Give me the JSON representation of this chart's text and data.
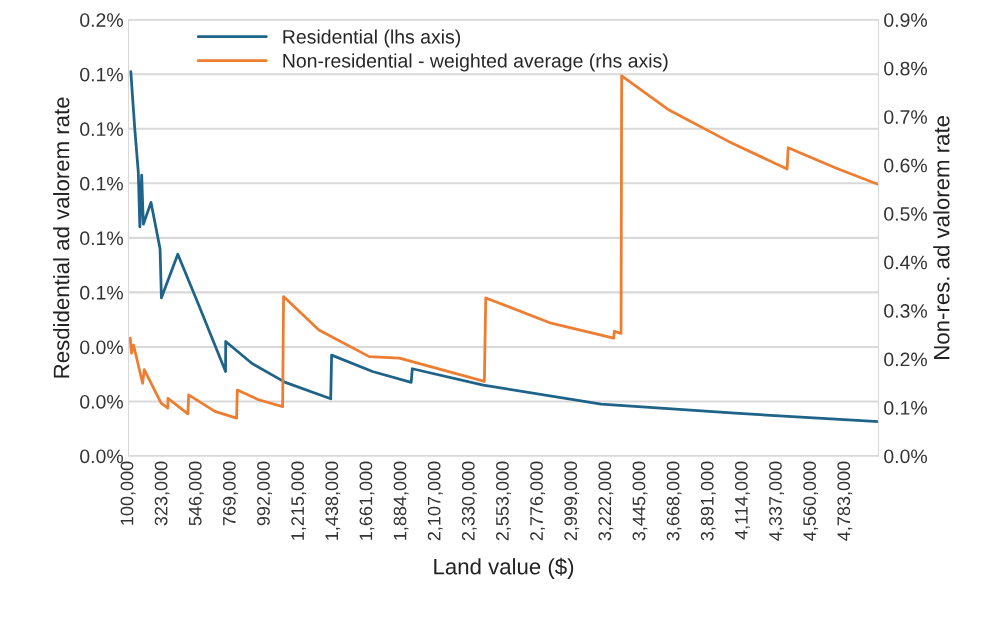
{
  "chart_data": {
    "type": "line",
    "xlabel": "Land value ($)",
    "ylabel": "Resdidential ad valorem rate",
    "y2label": "Non-res. ad valorem rate",
    "xlim": [
      100000,
      5000000
    ],
    "xticks": [
      {
        "value": 100000,
        "label": "100,000"
      },
      {
        "value": 323000,
        "label": "323,000"
      },
      {
        "value": 546000,
        "label": "546,000"
      },
      {
        "value": 769000,
        "label": "769,000"
      },
      {
        "value": 992000,
        "label": "992,000"
      },
      {
        "value": 1215000,
        "label": "1,215,000"
      },
      {
        "value": 1438000,
        "label": "1,438,000"
      },
      {
        "value": 1661000,
        "label": "1,661,000"
      },
      {
        "value": 1884000,
        "label": "1,884,000"
      },
      {
        "value": 2107000,
        "label": "2,107,000"
      },
      {
        "value": 2330000,
        "label": "2,330,000"
      },
      {
        "value": 2553000,
        "label": "2,553,000"
      },
      {
        "value": 2776000,
        "label": "2,776,000"
      },
      {
        "value": 2999000,
        "label": "2,999,000"
      },
      {
        "value": 3222000,
        "label": "3,222,000"
      },
      {
        "value": 3445000,
        "label": "3,445,000"
      },
      {
        "value": 3668000,
        "label": "3,668,000"
      },
      {
        "value": 3891000,
        "label": "3,891,000"
      },
      {
        "value": 4114000,
        "label": "4,114,000"
      },
      {
        "value": 4337000,
        "label": "4,337,000"
      },
      {
        "value": 4560000,
        "label": "4,560,000"
      },
      {
        "value": 4783000,
        "label": "4,783,000"
      }
    ],
    "ylim": [
      0,
      0.16
    ],
    "yticks": [
      {
        "value": 0,
        "label": "0.0%"
      },
      {
        "value": 0.02,
        "label": "0.0%"
      },
      {
        "value": 0.04,
        "label": "0.0%"
      },
      {
        "value": 0.06,
        "label": "0.1%"
      },
      {
        "value": 0.08,
        "label": "0.1%"
      },
      {
        "value": 0.1,
        "label": "0.1%"
      },
      {
        "value": 0.12,
        "label": "0.1%"
      },
      {
        "value": 0.14,
        "label": "0.1%"
      },
      {
        "value": 0.16,
        "label": "0.2%"
      }
    ],
    "y2lim": [
      0,
      0.9
    ],
    "y2ticks": [
      {
        "value": 0,
        "label": "0.0%"
      },
      {
        "value": 0.1,
        "label": "0.1%"
      },
      {
        "value": 0.2,
        "label": "0.2%"
      },
      {
        "value": 0.3,
        "label": "0.3%"
      },
      {
        "value": 0.4,
        "label": "0.4%"
      },
      {
        "value": 0.5,
        "label": "0.5%"
      },
      {
        "value": 0.6,
        "label": "0.6%"
      },
      {
        "value": 0.7,
        "label": "0.7%"
      },
      {
        "value": 0.8,
        "label": "0.8%"
      },
      {
        "value": 0.9,
        "label": "0.9%"
      }
    ],
    "grid": "y",
    "legend": "top left",
    "series": [
      {
        "name": "Residential (lhs axis)",
        "color": "#1f6488",
        "x": [
          115000,
          126000,
          141000,
          164000,
          174000,
          186000,
          197000,
          247000,
          306000,
          315000,
          422000,
          554000,
          734000,
          735000,
          905000,
          1124000,
          1421000,
          1427000,
          1694000,
          1947000,
          1954000,
          2418000,
          3188000,
          4063000,
          5000000
        ],
        "values": [
          0.141,
          0.132,
          0.12,
          0.104,
          0.084,
          0.103,
          0.085,
          0.093,
          0.076,
          0.058,
          0.074,
          0.056,
          0.031,
          0.042,
          0.034,
          0.027,
          0.021,
          0.037,
          0.031,
          0.027,
          0.032,
          0.026,
          0.019,
          0.0157,
          0.0126
        ]
      },
      {
        "name": "Non-residential - weighted average (rhs axis)",
        "color": "#ed7d31",
        "axis": "y2",
        "x": [
          111000,
          120000,
          133000,
          192000,
          203000,
          313000,
          357000,
          358000,
          488000,
          493000,
          664000,
          806000,
          811000,
          950000,
          1107000,
          1113000,
          1344000,
          1673000,
          1870000,
          2425000,
          2434000,
          2861000,
          3270000,
          3274000,
          3318000,
          3322000,
          3625000,
          4020000,
          4403000,
          4410000,
          4721000,
          5000000
        ],
        "values": [
          0.243,
          0.212,
          0.229,
          0.15,
          0.178,
          0.109,
          0.099,
          0.119,
          0.087,
          0.126,
          0.092,
          0.078,
          0.136,
          0.116,
          0.102,
          0.329,
          0.26,
          0.205,
          0.202,
          0.154,
          0.326,
          0.274,
          0.243,
          0.257,
          0.253,
          0.784,
          0.715,
          0.649,
          0.592,
          0.636,
          0.594,
          0.56
        ]
      }
    ]
  }
}
